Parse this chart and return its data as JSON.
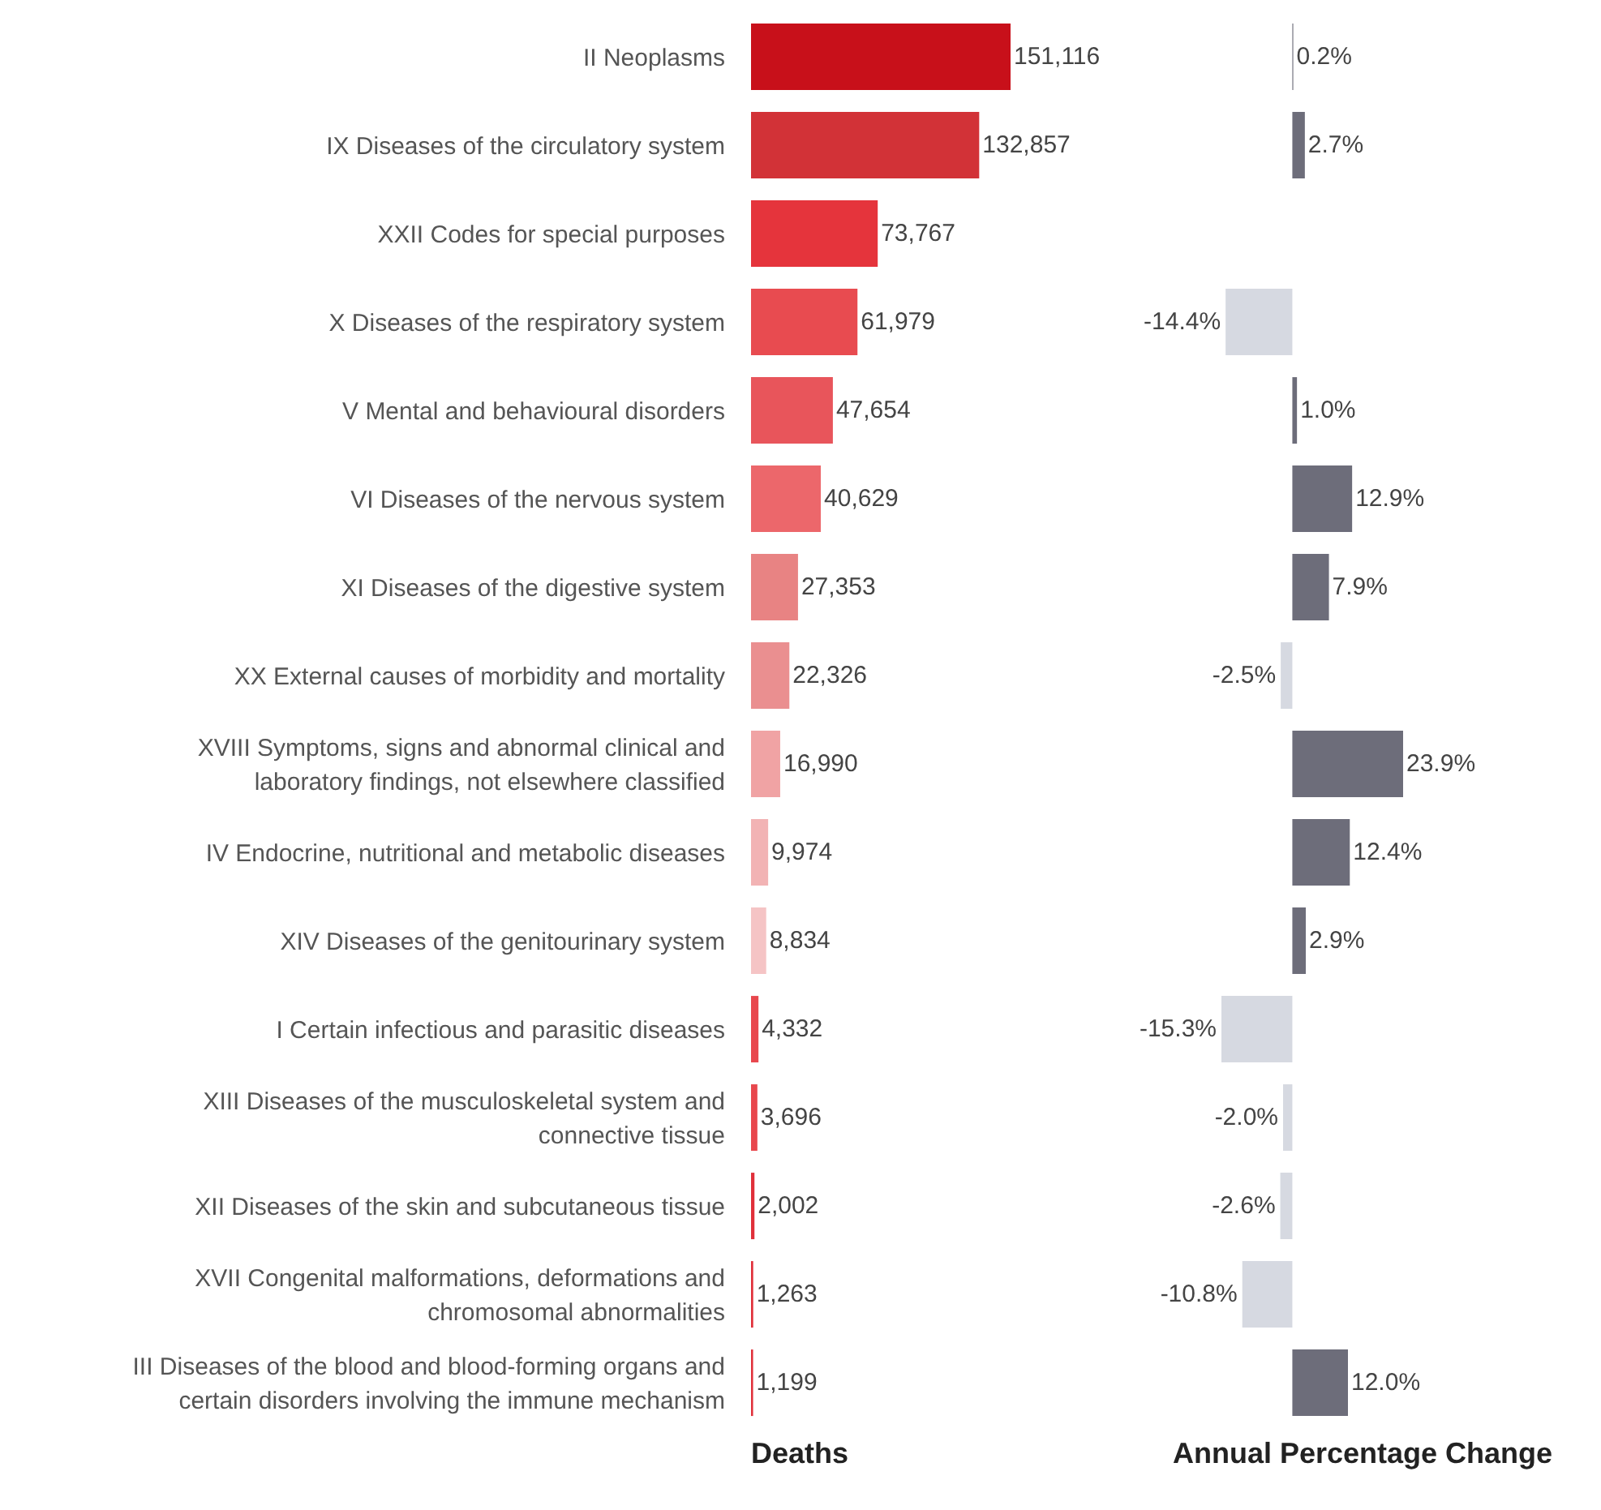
{
  "chart_data": [
    {
      "type": "bar",
      "orientation": "horizontal",
      "xlabel": "Deaths",
      "tick_labels": "y",
      "categories": [
        "II Neoplasms",
        "IX Diseases of the circulatory system",
        "XXII Codes for special purposes",
        "X Diseases of the respiratory system",
        "V Mental and behavioural disorders",
        "VI Diseases of the nervous system",
        "XI Diseases of the digestive system",
        "XX External causes of morbidity and mortality",
        "XVIII Symptoms, signs and abnormal clinical and laboratory findings, not elsewhere classified",
        "IV Endocrine, nutritional and metabolic diseases",
        "XIV Diseases of the genitourinary system",
        "I Certain infectious and parasitic diseases",
        "XIII Diseases of the musculoskeletal system and connective tissue",
        "XII Diseases of the skin and subcutaneous tissue",
        "XVII Congenital malformations, deformations and chromosomal abnormalities",
        "III Diseases of the blood and blood-forming organs and certain disorders involving the immune mechanism"
      ],
      "values": [
        151116,
        132857,
        73767,
        61979,
        47654,
        40629,
        27353,
        22326,
        16990,
        9974,
        8834,
        4332,
        3696,
        2002,
        1263,
        1199
      ],
      "value_labels": [
        "151,116",
        "132,857",
        "73,767",
        "61,979",
        "47,654",
        "40,629",
        "27,353",
        "22,326",
        "16,990",
        "9,974",
        "8,834",
        "4,332",
        "3,696",
        "2,002",
        "1,263",
        "1,199"
      ],
      "colors": [
        "#c8101a",
        "#d23237",
        "#e5343c",
        "#e84b50",
        "#e8555b",
        "#ec676b",
        "#e88383",
        "#ea8f90",
        "#f0a3a4",
        "#f2b3b4",
        "#f5c4c5",
        "#e8474d",
        "#e8474d",
        "#e0303a",
        "#e0303a",
        "#e0303a"
      ]
    },
    {
      "type": "bar",
      "orientation": "horizontal",
      "xlabel": "Annual Percentage Change",
      "tick_labels": false,
      "categories": [
        null,
        null,
        null,
        null,
        null,
        null,
        null,
        null,
        null,
        null,
        null,
        null,
        null,
        null,
        null,
        null
      ],
      "values": [
        0.2,
        2.7,
        null,
        -14.4,
        1.0,
        12.9,
        7.9,
        -2.5,
        23.9,
        12.4,
        2.9,
        -15.3,
        -2.0,
        -2.6,
        -10.8,
        12.0
      ],
      "value_labels": [
        "0.2%",
        "2.7%",
        null,
        "-14.4%",
        "1.0%",
        "12.9%",
        "7.9%",
        "-2.5%",
        "23.9%",
        "12.4%",
        "2.9%",
        "-15.3%",
        "-2.0%",
        "-2.6%",
        "-10.8%",
        "12.0%"
      ],
      "colors": [
        "#6d6d7a",
        "#6d6d7a",
        "#6d6d7a",
        "#d6d9e1",
        "#6d6d7a",
        "#6d6d7a",
        "#6d6d7a",
        "#d6d9e1",
        "#6d6d7a",
        "#6d6d7a",
        "#6d6d7a",
        "#d6d9e1",
        "#d6d9e1",
        "#d6d9e1",
        "#d6d9e1",
        "#6d6d7a"
      ]
    }
  ]
}
